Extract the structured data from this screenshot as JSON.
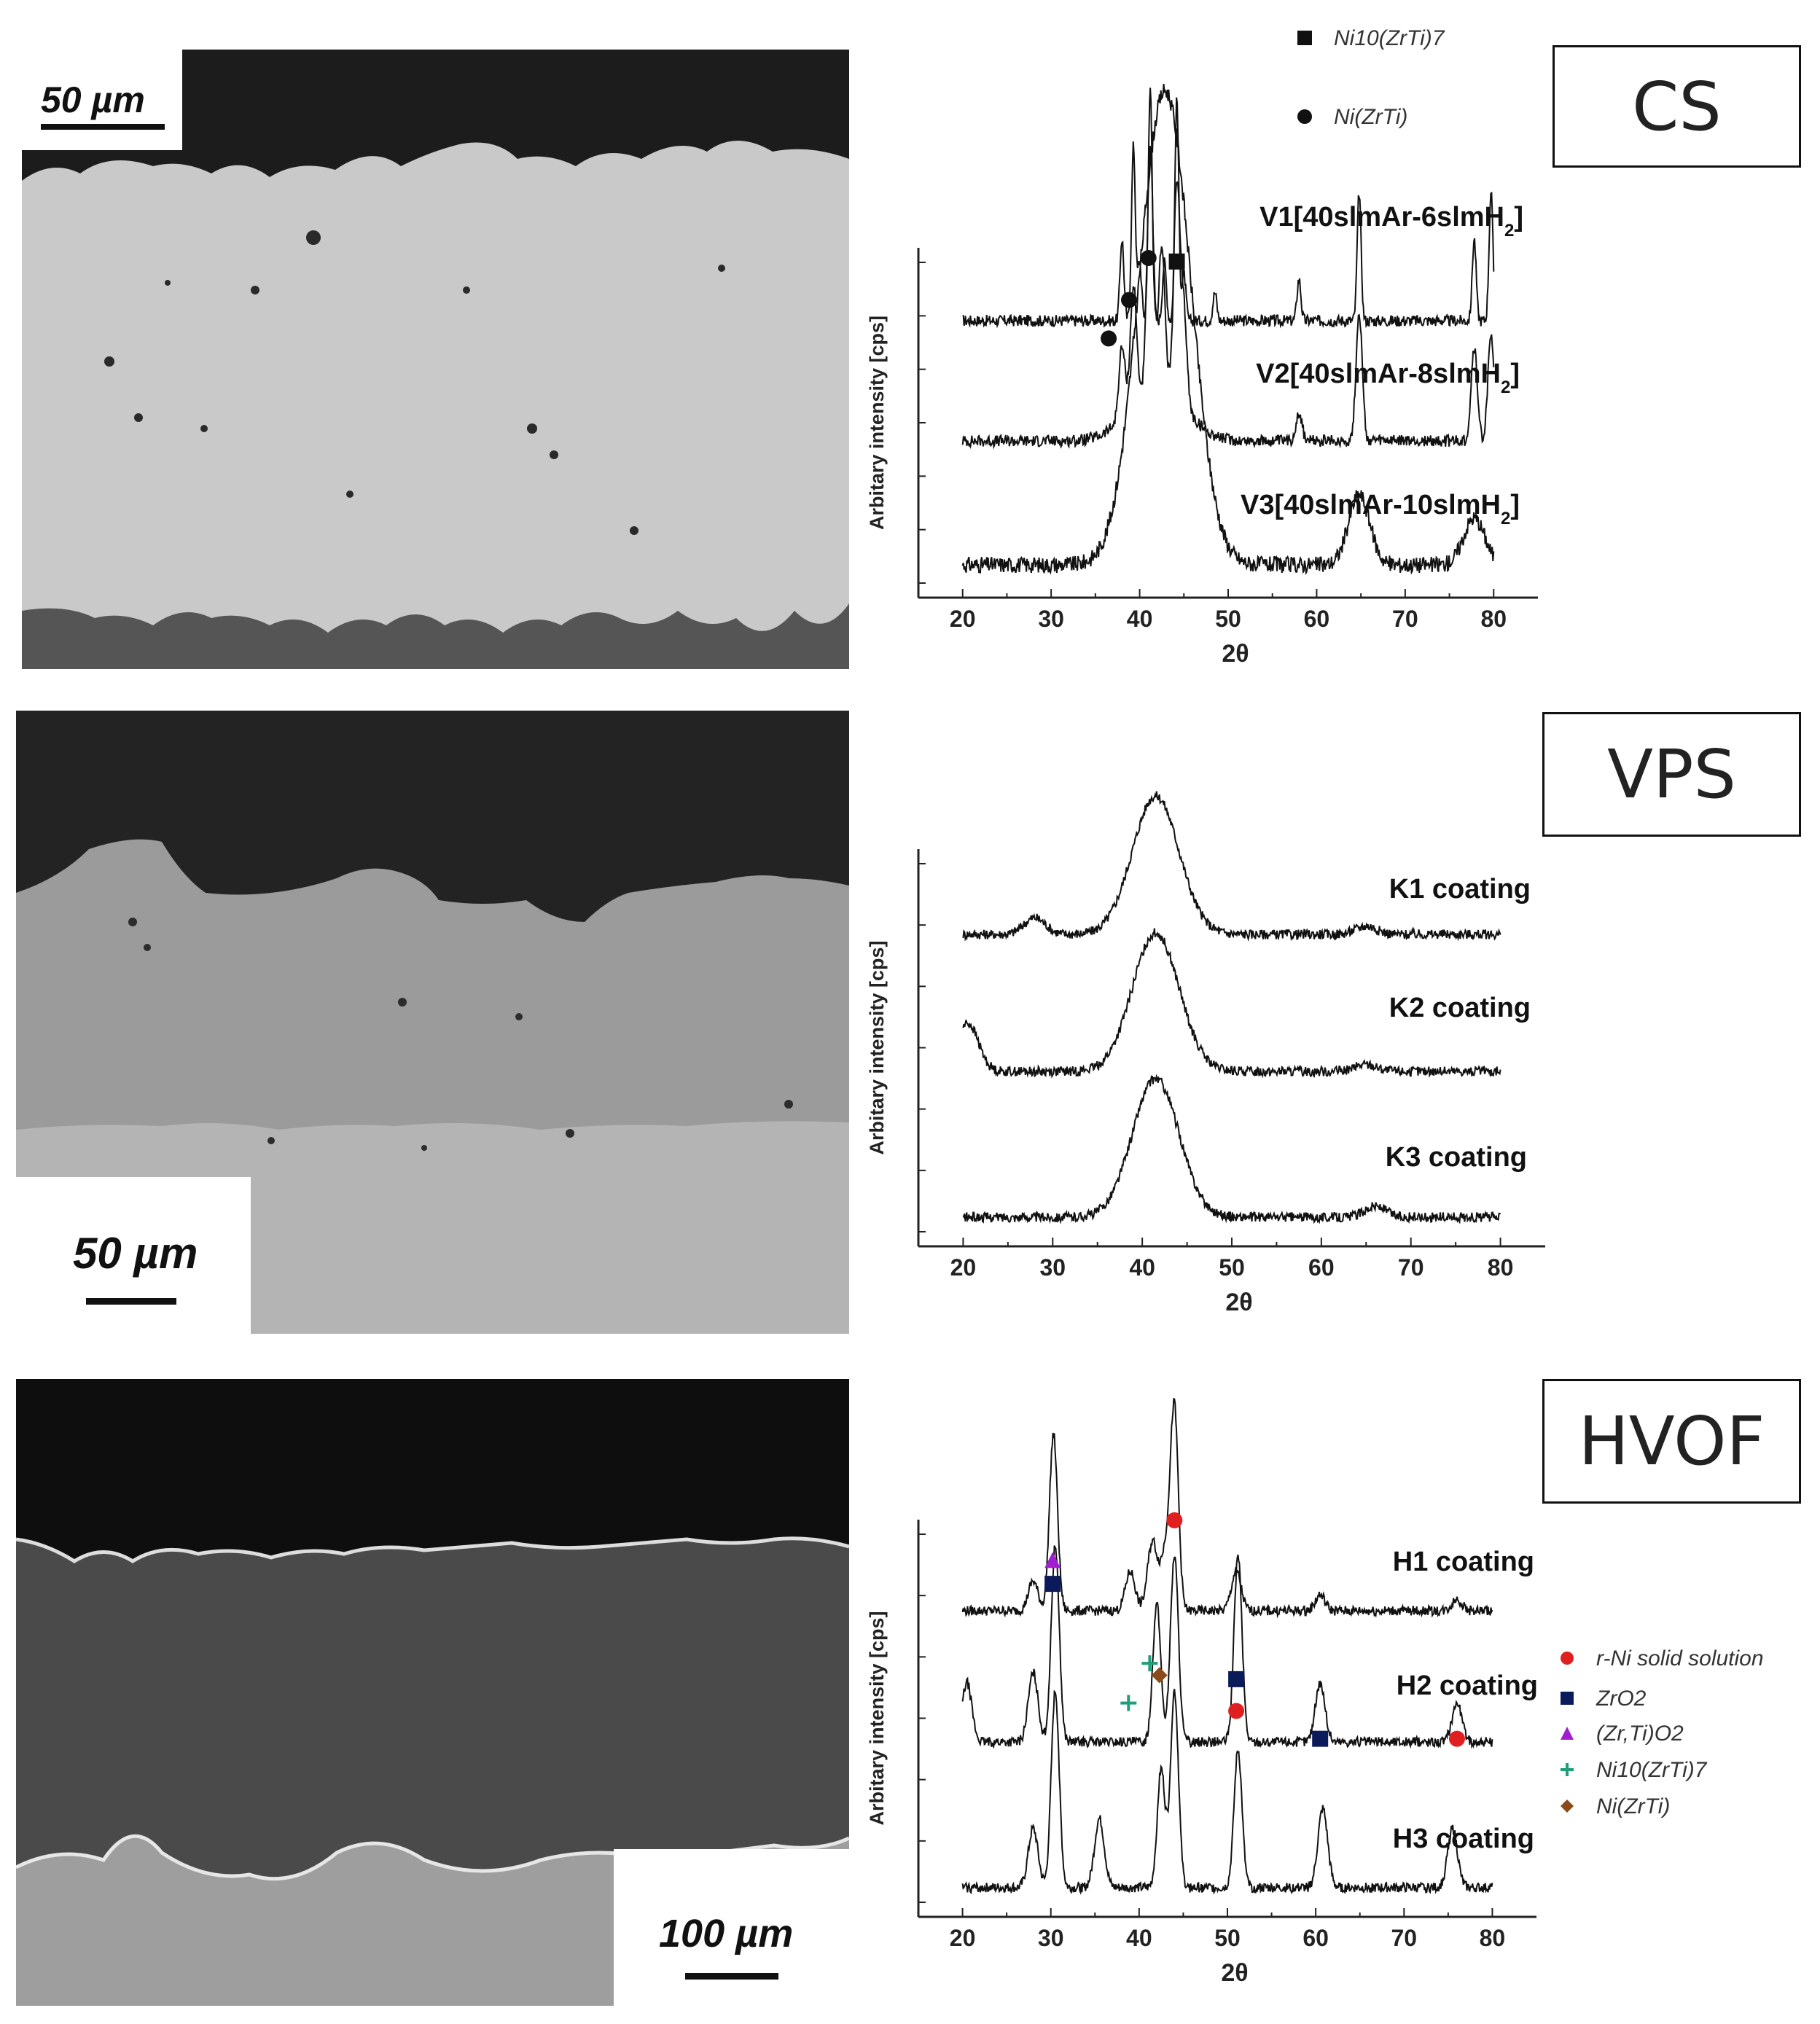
{
  "panels": [
    {
      "id": "cs",
      "tag": "CS",
      "scale_label": "50 µm",
      "xrd": {
        "xlabel": "2θ",
        "ylabel": "Arbitary intensity [cps]",
        "xticks": [
          20,
          30,
          40,
          50,
          60,
          70,
          80
        ],
        "xlim": [
          15,
          85
        ],
        "legend": [
          {
            "marker": "square",
            "label": "Ni10(ZrTi)7",
            "color": "#111111"
          },
          {
            "marker": "circle",
            "label": "Ni(ZrTi)",
            "color": "#111111"
          }
        ],
        "series": [
          {
            "name": "V1[40slmAr-6slmH2]",
            "baseline": 0.0,
            "shape": "crystalline",
            "peaks": [
              [
                38,
                0.35
              ],
              [
                39.3,
                0.75
              ],
              [
                40,
                0.25
              ],
              [
                41.2,
                1.0
              ],
              [
                42.8,
                0.25
              ],
              [
                44.2,
                0.95
              ],
              [
                45,
                0.2
              ],
              [
                48.5,
                0.12
              ],
              [
                58,
                0.18
              ],
              [
                64.8,
                0.55
              ],
              [
                77.8,
                0.35
              ],
              [
                79.7,
                0.55
              ]
            ]
          },
          {
            "name": "V2[40slmAr-8slmH2]",
            "baseline": 1.0,
            "shape": "crystalline-broad",
            "peaks": [
              [
                38,
                0.3
              ],
              [
                39.3,
                0.5
              ],
              [
                41.2,
                1.0
              ],
              [
                42.5,
                0.6
              ],
              [
                44.2,
                0.9
              ],
              [
                45,
                0.4
              ],
              [
                58,
                0.12
              ],
              [
                64.8,
                0.55
              ],
              [
                77.8,
                0.4
              ],
              [
                79.7,
                0.45
              ]
            ]
          },
          {
            "name": "V3[40slmAr-10slmH2]",
            "baseline": 2.0,
            "shape": "amorphous",
            "peaks": [
              [
                41.5,
                0.95
              ],
              [
                43.5,
                0.7
              ],
              [
                44.2,
                0.6
              ],
              [
                64.8,
                0.3
              ],
              [
                77.8,
                0.2
              ]
            ]
          }
        ],
        "markers": [
          {
            "symbol": "circle",
            "x": 36.5,
            "level": 0.72
          },
          {
            "symbol": "circle",
            "x": 38.8,
            "level": 0.83
          },
          {
            "symbol": "circle",
            "x": 41,
            "level": 0.95
          },
          {
            "symbol": "square",
            "x": 44.2,
            "level": 0.94
          }
        ]
      }
    },
    {
      "id": "vps",
      "tag": "VPS",
      "scale_label": "50 µm",
      "xrd": {
        "xlabel": "2θ",
        "ylabel": "Arbitary intensity [cps]",
        "xticks": [
          20,
          30,
          40,
          50,
          60,
          70,
          80
        ],
        "xlim": [
          15,
          85
        ],
        "legend": [],
        "series": [
          {
            "name": "K1 coating",
            "baseline": 0.0,
            "shape": "amorphous",
            "peaks": [
              [
                28,
                0.12
              ],
              [
                41.5,
                1.0
              ],
              [
                65,
                0.06
              ]
            ]
          },
          {
            "name": "K2 coating",
            "baseline": 1.0,
            "shape": "amorphous",
            "peaks": [
              [
                20.5,
                0.35
              ],
              [
                41.5,
                1.0
              ],
              [
                65,
                0.05
              ]
            ]
          },
          {
            "name": "K3 coating",
            "baseline": 2.0,
            "shape": "amorphous",
            "peaks": [
              [
                41.5,
                1.0
              ],
              [
                66,
                0.08
              ]
            ]
          }
        ],
        "markers": []
      }
    },
    {
      "id": "hvof",
      "tag": "HVOF",
      "scale_label": "100 µm",
      "xrd": {
        "xlabel": "2θ",
        "ylabel": "Arbitary intensity [cps]",
        "xticks": [
          20,
          30,
          40,
          50,
          60,
          70,
          80
        ],
        "xlim": [
          15,
          85
        ],
        "legend": [
          {
            "marker": "circle",
            "label": "r-Ni solid solution",
            "color": "#e02020"
          },
          {
            "marker": "square",
            "label": "ZrO2",
            "color": "#0b1a5a"
          },
          {
            "marker": "triangle",
            "label": "(Zr,Ti)O2",
            "color": "#a020d0"
          },
          {
            "marker": "plus",
            "label": "Ni10(ZrTi)7",
            "color": "#1e9e7a"
          },
          {
            "marker": "diamond",
            "label": "Ni(ZrTi)",
            "color": "#8a4a1a"
          }
        ],
        "series": [
          {
            "name": "H1 coating",
            "baseline": 0.0,
            "shape": "sharp",
            "peaks": [
              [
                28,
                0.15
              ],
              [
                30.3,
                0.9
              ],
              [
                39,
                0.2
              ],
              [
                41.5,
                0.35
              ],
              [
                43,
                0.3
              ],
              [
                44,
                1.0
              ],
              [
                51,
                0.2
              ],
              [
                60.5,
                0.08
              ],
              [
                76,
                0.06
              ]
            ]
          },
          {
            "name": "H2 coating",
            "baseline": 1.0,
            "shape": "sharp",
            "peaks": [
              [
                20.5,
                0.3
              ],
              [
                28,
                0.35
              ],
              [
                30.5,
                1.0
              ],
              [
                42,
                0.7
              ],
              [
                44,
                0.95
              ],
              [
                51.2,
                0.95
              ],
              [
                60.5,
                0.3
              ],
              [
                76,
                0.2
              ]
            ]
          },
          {
            "name": "H3 coating",
            "baseline": 2.0,
            "shape": "sharp",
            "peaks": [
              [
                28,
                0.3
              ],
              [
                30.5,
                1.0
              ],
              [
                35.5,
                0.35
              ],
              [
                42.5,
                0.6
              ],
              [
                44,
                1.0
              ],
              [
                51.2,
                0.7
              ],
              [
                60.8,
                0.4
              ],
              [
                75.5,
                0.3
              ]
            ]
          }
        ],
        "markers": [
          {
            "symbol": "triangle",
            "x": 30.2,
            "level": 0.88,
            "color": "#a020d0"
          },
          {
            "symbol": "square",
            "x": 30.2,
            "level": 0.82,
            "color": "#0b1a5a"
          },
          {
            "symbol": "plus",
            "x": 38.8,
            "level": 0.52,
            "color": "#1e9e7a"
          },
          {
            "symbol": "plus",
            "x": 41.2,
            "level": 0.62,
            "color": "#1e9e7a"
          },
          {
            "symbol": "diamond",
            "x": 42.3,
            "level": 0.59,
            "color": "#8a4a1a"
          },
          {
            "symbol": "circle",
            "x": 44,
            "level": 0.98,
            "color": "#e02020"
          },
          {
            "symbol": "square",
            "x": 51,
            "level": 0.58,
            "color": "#0b1a5a"
          },
          {
            "symbol": "circle",
            "x": 51,
            "level": 0.5,
            "color": "#e02020"
          },
          {
            "symbol": "square",
            "x": 60.5,
            "level": 0.43,
            "color": "#0b1a5a"
          },
          {
            "symbol": "circle",
            "x": 76,
            "level": 0.43,
            "color": "#e02020"
          }
        ]
      }
    }
  ]
}
